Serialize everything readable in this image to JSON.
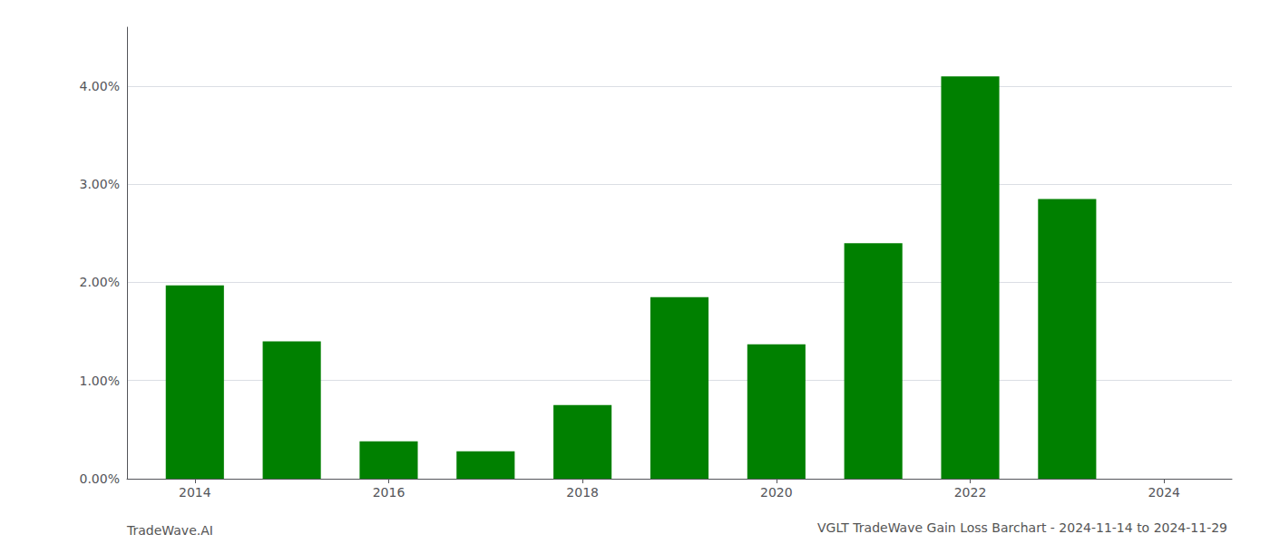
{
  "chart_data": {
    "type": "bar",
    "title": "VGLT TradeWave Gain Loss Barchart - 2024-11-14 to 2024-11-29",
    "annotations": [
      "TradeWave.AI"
    ],
    "x": [
      2014,
      2015,
      2016,
      2017,
      2018,
      2019,
      2020,
      2021,
      2022,
      2023
    ],
    "values": [
      0.0197,
      0.014,
      0.0038,
      0.0028,
      0.0075,
      0.0185,
      0.0137,
      0.024,
      0.041,
      0.0285
    ],
    "color": "#008000",
    "xlim": [
      2013.3,
      2024.7
    ],
    "xticks": [
      2014,
      2016,
      2018,
      2020,
      2022,
      2024
    ],
    "ylim": [
      0,
      0.046
    ],
    "yticks": [
      {
        "value": 0.0,
        "label": "0.00%"
      },
      {
        "value": 0.01,
        "label": "1.00%"
      },
      {
        "value": 0.02,
        "label": "2.00%"
      },
      {
        "value": 0.03,
        "label": "3.00%"
      },
      {
        "value": 0.04,
        "label": "4.00%"
      }
    ],
    "grid": true
  }
}
